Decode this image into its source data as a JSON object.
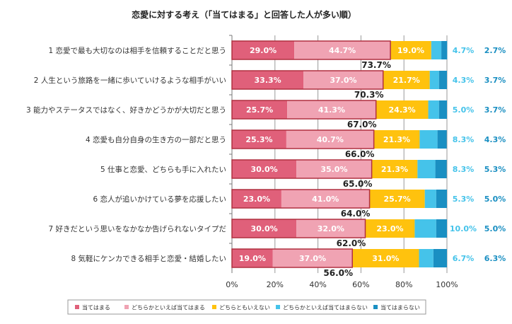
{
  "chart_data": {
    "type": "bar",
    "stacked": true,
    "orientation": "horizontal",
    "title": "恋愛に対する考え（「当てはまる」と回答した人が多い順）",
    "categories": [
      "1 恋愛で最も大切なのは相手を信頼することだと思う",
      "2 人生という旅路を一緒に歩いていけるような相手がいい",
      "3 能力やステータスではなく、好きかどうかが大切だと思う",
      "4 恋愛も自分自身の生き方の一部だと思う",
      "5 仕事と恋愛、どちらも手に入れたい",
      "6 恋人が追いかけている夢を応援したい",
      "7 好きだという思いをなかなか告げられないタイプだ",
      "8 気軽にケンカできる相手と恋愛・結婚したい"
    ],
    "series": [
      {
        "name": "当てはまる",
        "color": "#e0607a",
        "values": [
          29.0,
          33.3,
          25.7,
          25.3,
          30.0,
          23.0,
          30.0,
          19.0
        ]
      },
      {
        "name": "どちらかといえば当てはまる",
        "color": "#f0a3b3",
        "values": [
          44.7,
          37.0,
          41.3,
          40.7,
          35.0,
          41.0,
          32.0,
          37.0
        ]
      },
      {
        "name": "どちらともいえない",
        "color": "#ffc20e",
        "values": [
          19.0,
          21.7,
          24.3,
          21.3,
          21.3,
          25.7,
          23.0,
          31.0
        ]
      },
      {
        "name": "どちらかといえば当てはまらない",
        "color": "#45c3ea",
        "values": [
          4.7,
          4.3,
          5.0,
          8.3,
          8.3,
          5.3,
          10.0,
          6.7
        ]
      },
      {
        "name": "当てはまらない",
        "color": "#1a8fc2",
        "values": [
          2.7,
          3.7,
          3.7,
          4.3,
          5.3,
          5.0,
          5.0,
          6.3
        ]
      }
    ],
    "sum_labels": [
      "73.7%",
      "70.3%",
      "67.0%",
      "66.0%",
      "65.0%",
      "64.0%",
      "62.0%",
      "56.0%"
    ],
    "xlim": [
      0,
      100
    ],
    "xticks": [
      "0%",
      "20%",
      "40%",
      "60%",
      "80%",
      "100%"
    ],
    "grid": true,
    "legend": "bottom"
  }
}
